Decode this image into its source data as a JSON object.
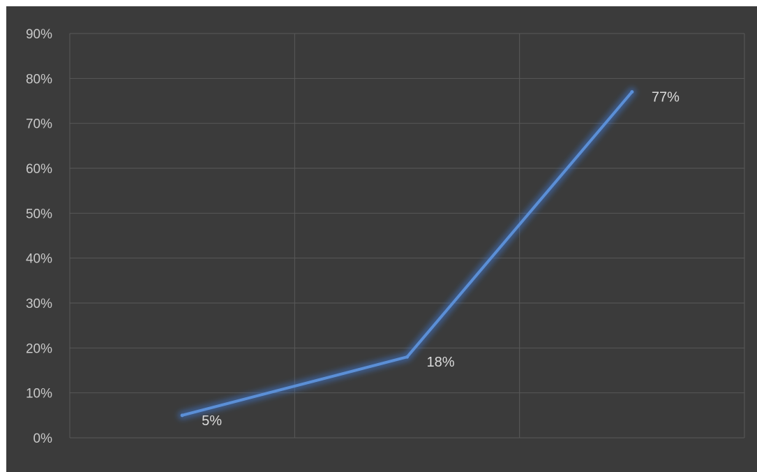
{
  "colors": {
    "background": "#3b3b3b",
    "grid": "#595959",
    "line": "#5b8fd6",
    "glow": "#3f78d0",
    "text": "#c9c9c9"
  },
  "chart_data": {
    "type": "line",
    "title": "",
    "xlabel": "",
    "ylabel": "",
    "ylim": [
      0,
      90
    ],
    "y_ticks": [
      "0%",
      "10%",
      "20%",
      "30%",
      "40%",
      "50%",
      "60%",
      "70%",
      "80%",
      "90%"
    ],
    "y_tick_values": [
      0,
      10,
      20,
      30,
      40,
      50,
      60,
      70,
      80,
      90
    ],
    "x_category_count": 3,
    "grid": true,
    "legend": "none",
    "series": [
      {
        "values": [
          5,
          18,
          77
        ],
        "labels": [
          "5%",
          "18%",
          "77%"
        ]
      }
    ]
  }
}
